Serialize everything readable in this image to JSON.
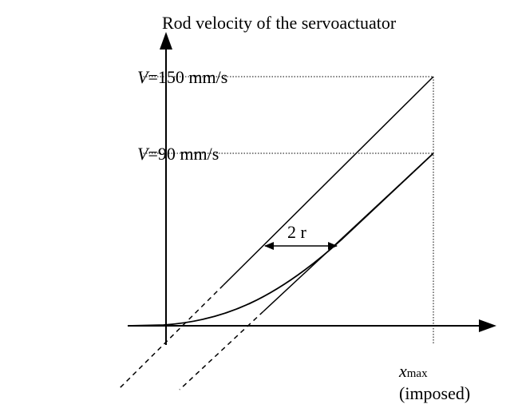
{
  "axis_title": "Rod velocity of the servoactuator",
  "levels": [
    {
      "symbol": "V",
      "text": "=150 mm/s"
    },
    {
      "symbol": "V",
      "text": "=90 mm/s"
    }
  ],
  "gap_label": "2 r",
  "x_marker": {
    "symbol": "x",
    "subscript": "max",
    "note": "(imposed)"
  }
}
